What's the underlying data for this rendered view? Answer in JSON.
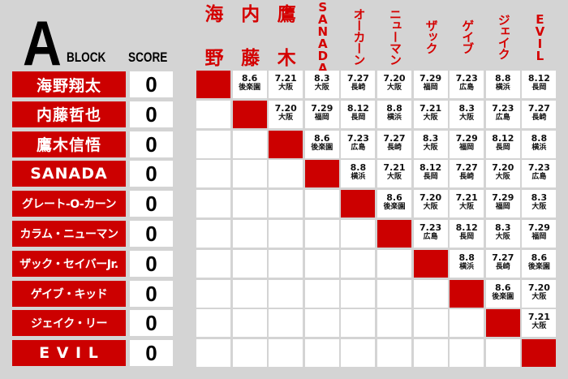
{
  "header": {
    "block_letter": "A",
    "block_label": "BLOCK",
    "score_label": "SCORE"
  },
  "columns": [
    {
      "top": "海",
      "bottom": "野",
      "type": "kanji"
    },
    {
      "top": "内",
      "bottom": "藤",
      "type": "kanji"
    },
    {
      "top": "鷹",
      "bottom": "木",
      "type": "kanji"
    },
    {
      "label": "SANADA",
      "type": "upright"
    },
    {
      "label": "オーカーン",
      "type": "vert"
    },
    {
      "label": "ニューマン",
      "type": "vert"
    },
    {
      "label": "ザック",
      "type": "vert"
    },
    {
      "label": "ゲイブ",
      "type": "vert"
    },
    {
      "label": "ジェイク",
      "type": "vert"
    },
    {
      "label": "EVIL",
      "type": "upright"
    }
  ],
  "players": [
    {
      "name": "海野翔太",
      "score": "0"
    },
    {
      "name": "内藤哲也",
      "score": "0"
    },
    {
      "name": "鷹木信悟",
      "score": "0"
    },
    {
      "name": "SANADA",
      "score": "0"
    },
    {
      "name": "グレート-O-カーン",
      "score": "0"
    },
    {
      "name": "カラム・ニューマン",
      "score": "0"
    },
    {
      "name": "ザック・セイバーJr.",
      "score": "0"
    },
    {
      "name": "ゲイブ・キッド",
      "score": "0"
    },
    {
      "name": "ジェイク・リー",
      "score": "0"
    },
    {
      "name": "E V I L",
      "score": "0"
    }
  ],
  "matches": [
    [
      [
        "8.6",
        "後楽園"
      ],
      [
        "7.21",
        "大阪"
      ],
      [
        "8.3",
        "大阪"
      ],
      [
        "7.27",
        "長崎"
      ],
      [
        "7.20",
        "大阪"
      ],
      [
        "7.29",
        "福岡"
      ],
      [
        "7.23",
        "広島"
      ],
      [
        "8.8",
        "横浜"
      ],
      [
        "8.12",
        "長岡"
      ]
    ],
    [
      [
        "7.20",
        "大阪"
      ],
      [
        "7.29",
        "福岡"
      ],
      [
        "8.12",
        "長岡"
      ],
      [
        "8.8",
        "横浜"
      ],
      [
        "7.21",
        "大阪"
      ],
      [
        "8.3",
        "大阪"
      ],
      [
        "7.23",
        "広島"
      ],
      [
        "7.27",
        "長崎"
      ]
    ],
    [
      [
        "8.6",
        "後楽園"
      ],
      [
        "7.23",
        "広島"
      ],
      [
        "7.27",
        "長崎"
      ],
      [
        "8.3",
        "大阪"
      ],
      [
        "7.29",
        "福岡"
      ],
      [
        "8.12",
        "長岡"
      ],
      [
        "8.8",
        "横浜"
      ]
    ],
    [
      [
        "8.8",
        "横浜"
      ],
      [
        "7.21",
        "大阪"
      ],
      [
        "8.12",
        "長岡"
      ],
      [
        "7.27",
        "長崎"
      ],
      [
        "7.20",
        "大阪"
      ],
      [
        "7.23",
        "広島"
      ]
    ],
    [
      [
        "8.6",
        "後楽園"
      ],
      [
        "7.20",
        "大阪"
      ],
      [
        "7.21",
        "大阪"
      ],
      [
        "7.29",
        "福岡"
      ],
      [
        "8.3",
        "大阪"
      ]
    ],
    [
      [
        "7.23",
        "広島"
      ],
      [
        "8.12",
        "長岡"
      ],
      [
        "8.3",
        "大阪"
      ],
      [
        "7.29",
        "福岡"
      ]
    ],
    [
      [
        "8.8",
        "横浜"
      ],
      [
        "7.27",
        "長崎"
      ],
      [
        "8.6",
        "後楽園"
      ]
    ],
    [
      [
        "8.6",
        "後楽園"
      ],
      [
        "7.20",
        "大阪"
      ]
    ],
    [
      [
        "7.21",
        "大阪"
      ]
    ],
    []
  ],
  "colors": {
    "red": "#cc0000",
    "header_red": "#d40000",
    "background": "#d4d4d4"
  }
}
